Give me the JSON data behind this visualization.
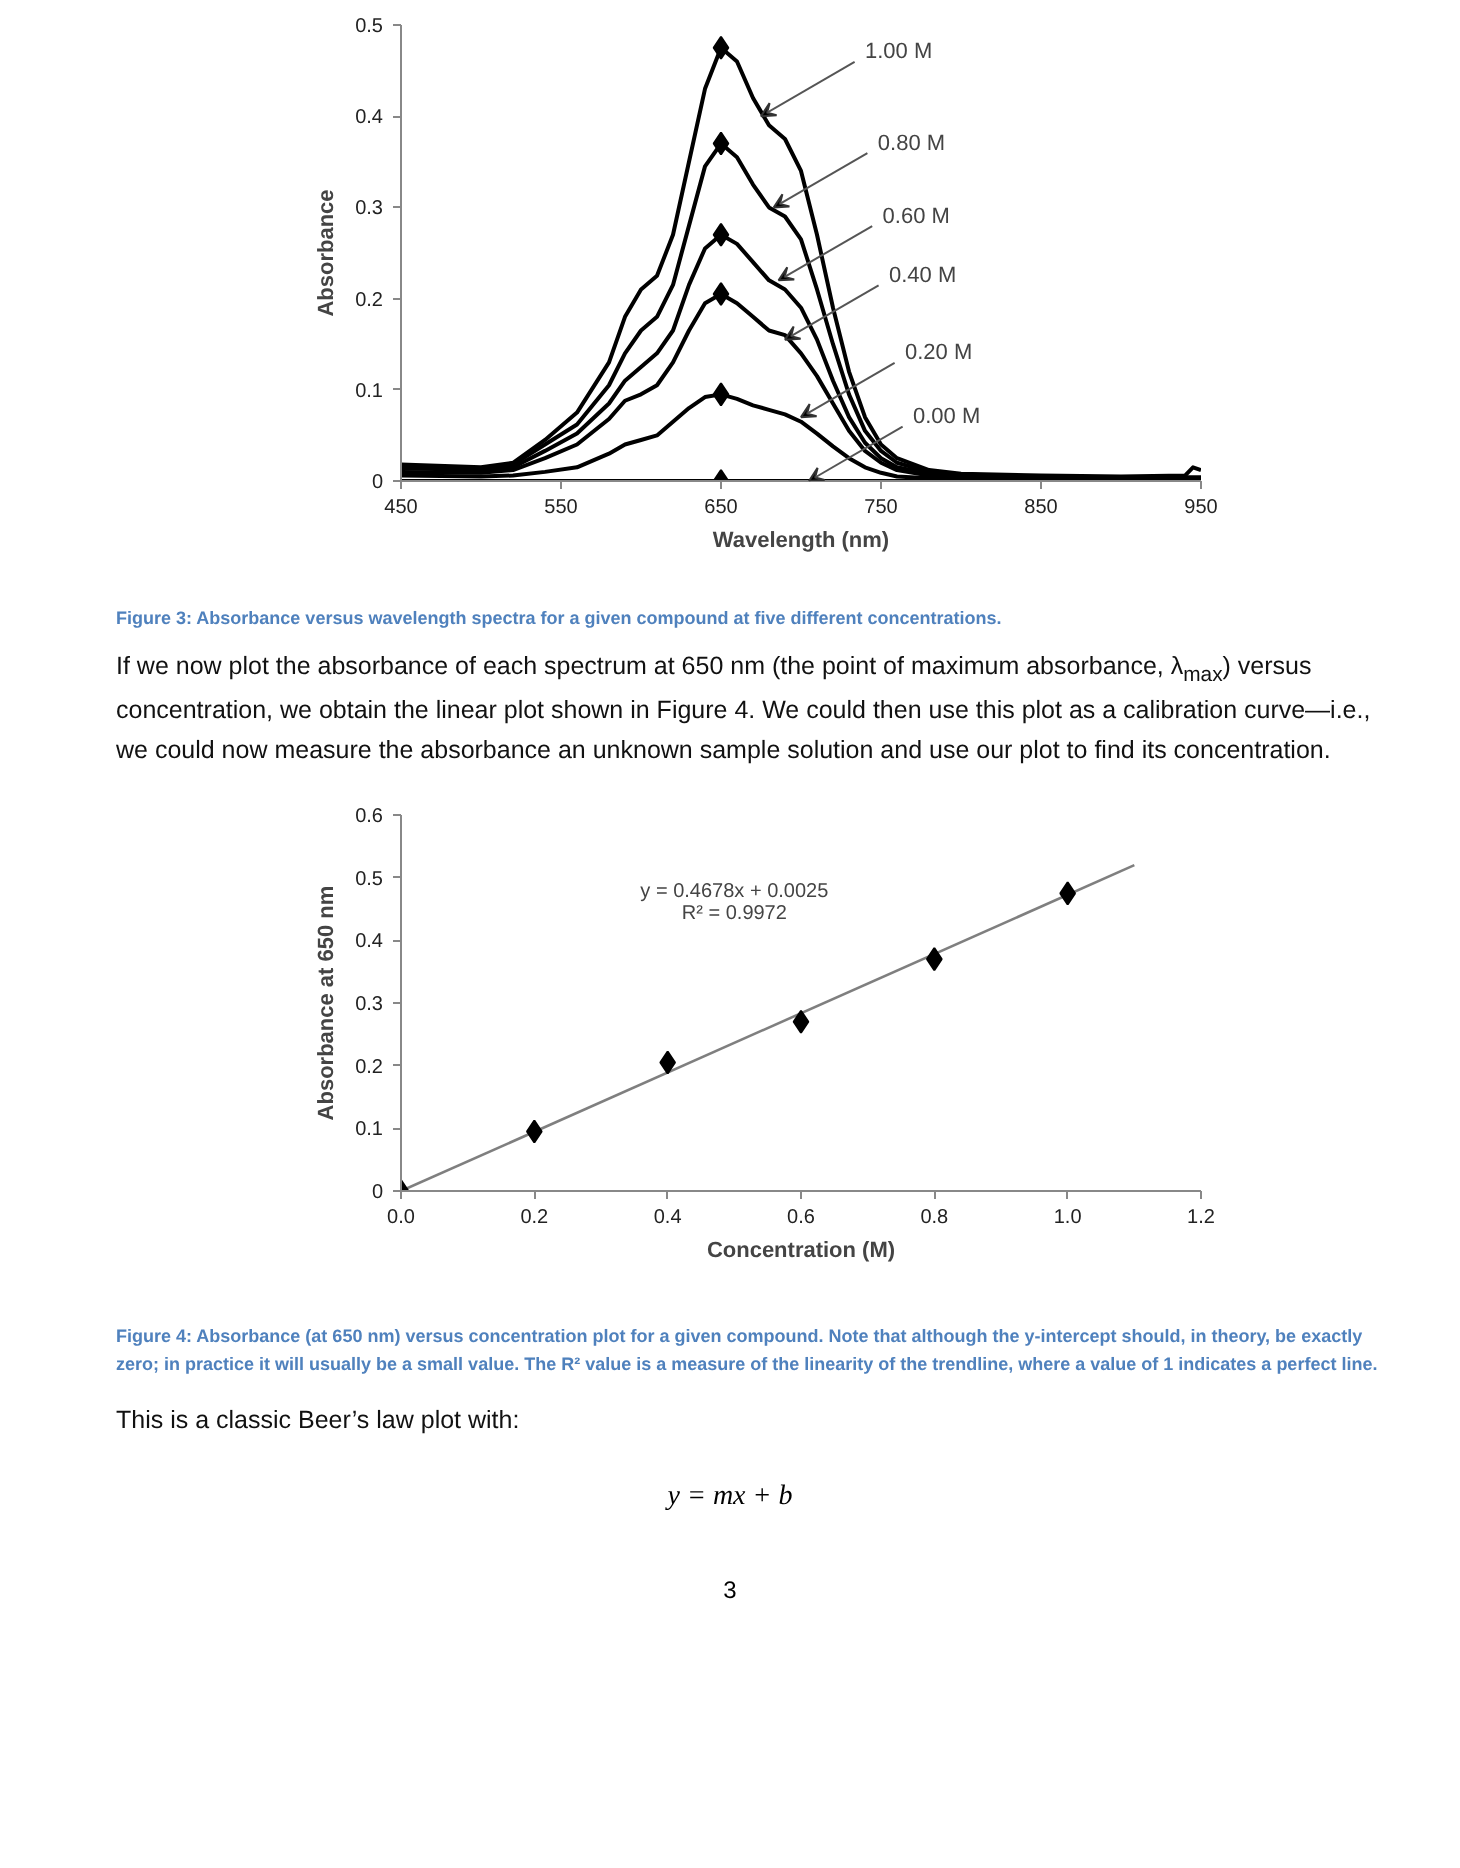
{
  "chart_data": [
    {
      "type": "line",
      "xlabel": "Wavelength (nm)",
      "ylabel": "Absorbance",
      "xlim": [
        450,
        950
      ],
      "ylim": [
        0,
        0.5
      ],
      "xticks": [
        450,
        550,
        650,
        750,
        850,
        950
      ],
      "yticks": [
        0,
        0.1,
        0.2,
        0.3,
        0.4,
        0.5
      ],
      "marker": "none",
      "line_style": "solid",
      "series": [
        {
          "color": "#000000",
          "x": [
            450,
            500,
            520,
            540,
            560,
            580,
            590,
            600,
            610,
            620,
            630,
            640,
            650,
            660,
            670,
            680,
            690,
            700,
            710,
            720,
            730,
            740,
            750,
            760,
            780,
            800,
            850,
            900,
            940,
            945,
            950
          ],
          "values": [
            0.018,
            0.015,
            0.02,
            0.045,
            0.075,
            0.13,
            0.18,
            0.21,
            0.225,
            0.27,
            0.35,
            0.43,
            0.475,
            0.46,
            0.42,
            0.39,
            0.375,
            0.34,
            0.27,
            0.19,
            0.12,
            0.07,
            0.04,
            0.025,
            0.012,
            0.008,
            0.006,
            0.005,
            0.006,
            0.015,
            0.012
          ]
        },
        {
          "color": "#000000",
          "x": [
            450,
            500,
            520,
            540,
            560,
            580,
            590,
            600,
            610,
            620,
            630,
            640,
            650,
            660,
            670,
            680,
            690,
            700,
            710,
            720,
            730,
            740,
            750,
            760,
            780,
            800,
            850,
            900,
            950
          ],
          "values": [
            0.016,
            0.014,
            0.018,
            0.04,
            0.062,
            0.105,
            0.14,
            0.165,
            0.18,
            0.215,
            0.28,
            0.345,
            0.37,
            0.355,
            0.325,
            0.3,
            0.29,
            0.265,
            0.21,
            0.15,
            0.095,
            0.055,
            0.033,
            0.02,
            0.01,
            0.007,
            0.005,
            0.004,
            0.004
          ]
        },
        {
          "color": "#000000",
          "x": [
            450,
            500,
            520,
            540,
            560,
            580,
            590,
            600,
            610,
            620,
            630,
            640,
            650,
            660,
            670,
            680,
            690,
            700,
            710,
            720,
            730,
            740,
            750,
            760,
            780,
            800,
            850,
            900,
            950
          ],
          "values": [
            0.014,
            0.012,
            0.015,
            0.033,
            0.052,
            0.085,
            0.11,
            0.125,
            0.14,
            0.165,
            0.215,
            0.255,
            0.27,
            0.26,
            0.24,
            0.22,
            0.21,
            0.19,
            0.155,
            0.11,
            0.07,
            0.042,
            0.025,
            0.015,
            0.008,
            0.005,
            0.004,
            0.003,
            0.003
          ]
        },
        {
          "color": "#000000",
          "x": [
            450,
            500,
            520,
            540,
            560,
            580,
            590,
            600,
            610,
            620,
            630,
            640,
            650,
            660,
            670,
            680,
            690,
            700,
            710,
            720,
            730,
            740,
            750,
            760,
            780,
            800,
            850,
            900,
            950
          ],
          "values": [
            0.01,
            0.009,
            0.012,
            0.025,
            0.04,
            0.068,
            0.088,
            0.095,
            0.105,
            0.13,
            0.165,
            0.195,
            0.205,
            0.195,
            0.18,
            0.165,
            0.16,
            0.14,
            0.115,
            0.085,
            0.055,
            0.033,
            0.02,
            0.012,
            0.006,
            0.004,
            0.003,
            0.002,
            0.002
          ]
        },
        {
          "color": "#000000",
          "x": [
            450,
            500,
            520,
            540,
            560,
            580,
            590,
            600,
            610,
            620,
            630,
            640,
            650,
            660,
            670,
            680,
            690,
            700,
            710,
            720,
            730,
            740,
            750,
            760,
            780,
            800,
            850,
            900,
            950
          ],
          "values": [
            0.006,
            0.005,
            0.006,
            0.01,
            0.015,
            0.03,
            0.04,
            0.045,
            0.05,
            0.065,
            0.08,
            0.092,
            0.095,
            0.09,
            0.083,
            0.078,
            0.073,
            0.065,
            0.052,
            0.038,
            0.025,
            0.015,
            0.009,
            0.005,
            0.003,
            0.002,
            0.001,
            0.001,
            0.001
          ]
        },
        {
          "color": "#000000",
          "x": [
            450,
            950
          ],
          "values": [
            0,
            0
          ]
        },
        {
          "type": "scatter",
          "marker": "diamond",
          "color": "#000000",
          "x": [
            650,
            650,
            650,
            650,
            650,
            650
          ],
          "values": [
            0.475,
            0.37,
            0.27,
            0.205,
            0.095,
            0
          ]
        }
      ],
      "annotations": [
        {
          "text": "1.00 M",
          "x": 675,
          "y": 0.4
        },
        {
          "text": "0.80 M",
          "x": 683,
          "y": 0.3
        },
        {
          "text": "0.60 M",
          "x": 686,
          "y": 0.22
        },
        {
          "text": "0.40 M",
          "x": 690,
          "y": 0.155
        },
        {
          "text": "0.20 M",
          "x": 700,
          "y": 0.07
        },
        {
          "text": "0.00 M",
          "x": 705,
          "y": 0
        },
        "Figure 3: Absorbance versus wavelength spectra for a given compound at five different concentrations.",
        "If we now plot the absorbance of each spectrum at 650 nm (the point of maximum absorbance, λ$_{max}$) versus concentration, we obtain the linear plot shown in Figure 4. We could then use this plot as a calibration curve—i.e., we could now measure the absorbance an unknown sample solution and use our plot to find its concentration."
      ]
    },
    {
      "type": "scatter",
      "xlabel": "Concentration (M)",
      "ylabel": "Absorbance at 650 nm",
      "xlim": [
        0,
        1.2
      ],
      "ylim": [
        0,
        0.6
      ],
      "xticks": [
        {
          "value": 0,
          "label": "0.0"
        },
        0.2,
        0.4,
        0.6,
        0.8,
        {
          "value": 1,
          "label": "1.0"
        },
        1.2
      ],
      "yticks": [
        0,
        0.1,
        0.2,
        0.3,
        0.4,
        0.5,
        0.6
      ],
      "marker": "diamond",
      "series": [
        {
          "type": "line",
          "marker": "none",
          "color": "#7f7f7f",
          "x": [
            0,
            1.1
          ],
          "values": [
            0,
            0.52
          ]
        },
        {
          "color": "#000000",
          "x": [
            0,
            0.2,
            0.4,
            0.6,
            0.8,
            1.0
          ],
          "values": [
            0,
            0.095,
            0.205,
            0.27,
            0.37,
            0.475
          ]
        }
      ],
      "annotations": [
        "y = 0.4678x + 0.0025",
        "R² = 0.9972",
        "Figure 4: Absorbance (at 650 nm) versus concentration plot for a given compound. Note that although the y-intercept should, in theory, be exactly zero; in practice it will usually be a small value. The R² value is a measure of the linearity of the trendline, where a value of 1 indicates a perfect line.",
        "This is a classic Beer’s law plot with:",
        "y = mx + b",
        "3"
      ]
    }
  ]
}
